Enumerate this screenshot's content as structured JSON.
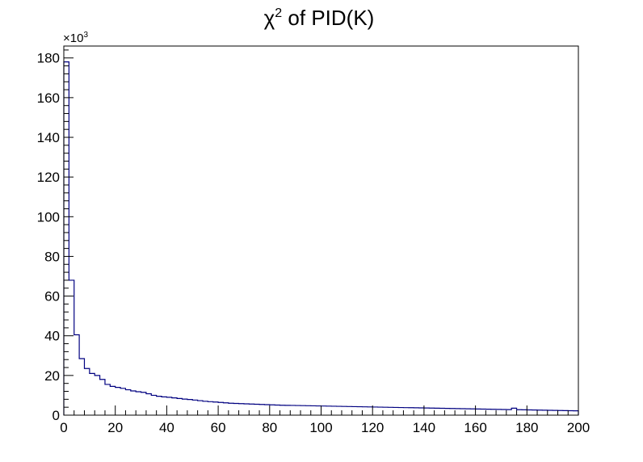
{
  "chart_data": {
    "type": "histogram",
    "title": "χ",
    "title_superscript": "2",
    "title_suffix": " of PID(K)",
    "xlabel": "",
    "ylabel": "",
    "y_multiplier_prefix": "×10",
    "y_multiplier_exponent": "3",
    "y_scale_factor": 1000,
    "xlim": [
      0,
      200
    ],
    "ylim": [
      0,
      186000
    ],
    "grid": false,
    "legend": "none",
    "line_color": "#000080",
    "x_ticks": [
      "0",
      "20",
      "40",
      "60",
      "80",
      "100",
      "120",
      "140",
      "160",
      "180",
      "200"
    ],
    "y_ticks": [
      "0",
      "20",
      "40",
      "60",
      "80",
      "100",
      "120",
      "140",
      "160",
      "180"
    ],
    "bin_width": 2,
    "bins_x_start": 0,
    "values": [
      178000,
      68000,
      40500,
      28500,
      23500,
      21000,
      20000,
      18000,
      15500,
      14500,
      14000,
      13500,
      12800,
      12200,
      11800,
      11500,
      10800,
      10000,
      9500,
      9200,
      9000,
      8700,
      8400,
      8100,
      7900,
      7600,
      7300,
      7000,
      6800,
      6600,
      6400,
      6200,
      6000,
      5900,
      5800,
      5700,
      5600,
      5500,
      5400,
      5300,
      5200,
      5100,
      5000,
      4950,
      4900,
      4850,
      4800,
      4750,
      4700,
      4650,
      4600,
      4550,
      4500,
      4450,
      4400,
      4350,
      4300,
      4250,
      4200,
      4150,
      4100,
      4050,
      4000,
      3950,
      3900,
      3850,
      3800,
      3750,
      3700,
      3650,
      3600,
      3550,
      3500,
      3450,
      3400,
      3350,
      3300,
      3250,
      3200,
      3150,
      3100,
      3050,
      3000,
      2950,
      2900,
      2850,
      2800,
      3500,
      2750,
      2700,
      2650,
      2600,
      2550,
      2500,
      2450,
      2400,
      2350,
      2300,
      2250,
      2200
    ]
  }
}
